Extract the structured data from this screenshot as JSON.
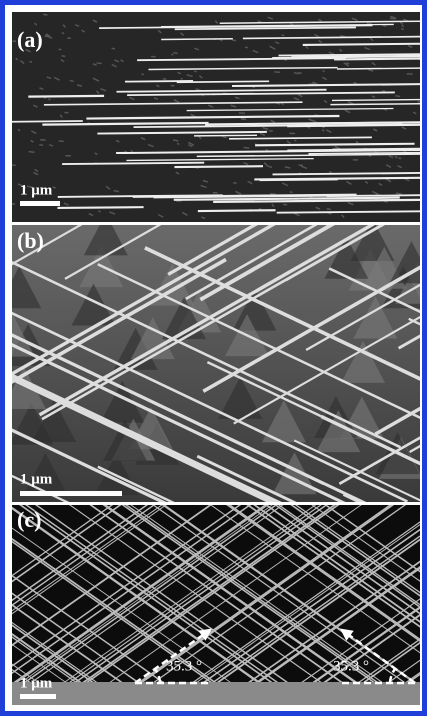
{
  "panels": [
    {
      "label": "(a)",
      "scale_bar": "1 μm"
    },
    {
      "label": "(b)",
      "scale_bar": "1 μm"
    },
    {
      "label": "(c)",
      "scale_bar": "1 μm",
      "angles": [
        "35.3 °",
        "35.3 °"
      ]
    }
  ]
}
